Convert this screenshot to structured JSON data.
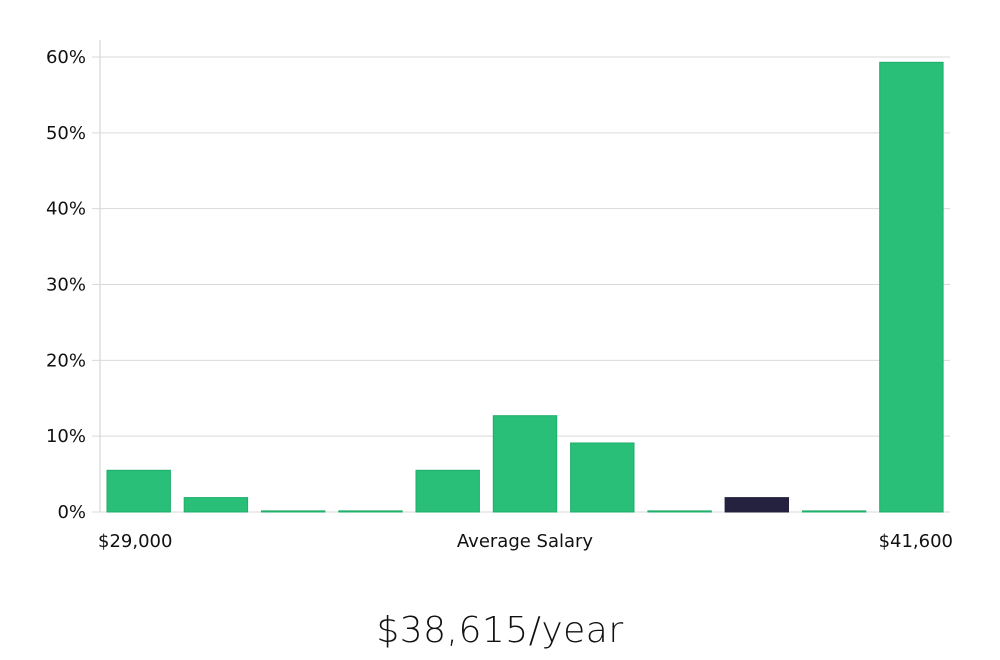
{
  "chart_data": {
    "type": "bar",
    "ylim": [
      0,
      60
    ],
    "yticks": [
      "0%",
      "10%",
      "20%",
      "30%",
      "40%",
      "50%",
      "60%"
    ],
    "ytick_values": [
      0,
      10,
      20,
      30,
      40,
      50,
      60
    ],
    "values": [
      5.5,
      1.9,
      0.15,
      0.15,
      5.5,
      12.7,
      9.1,
      0.15,
      1.9,
      0.15,
      59.3
    ],
    "highlight_index": 8,
    "x_min_label": "$29,000",
    "x_center_label": "Average Salary",
    "x_max_label": "$41,600",
    "grid": true,
    "colors": {
      "bar": "#29bf78",
      "bar_border": "#1fae69",
      "highlight": "#24223f",
      "grid": "#d9d9d9",
      "axis": "#cccccc"
    }
  },
  "salary_label": "$38,615/year"
}
